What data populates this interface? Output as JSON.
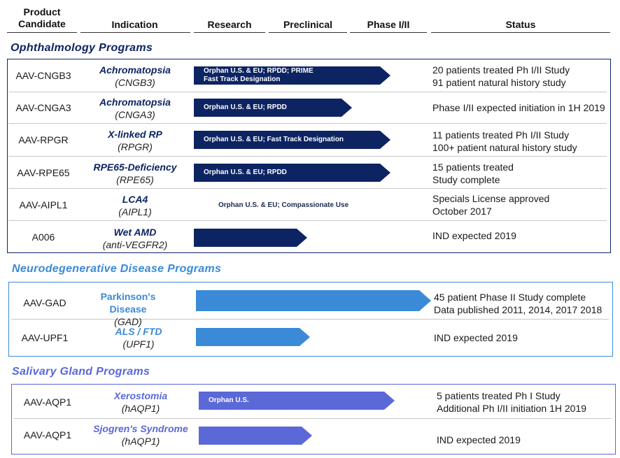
{
  "header": {
    "product_candidate": [
      "Product",
      "Candidate"
    ],
    "indication": "Indication",
    "research": "Research",
    "preclinical": "Preclinical",
    "phase": "Phase I/II",
    "status": "Status"
  },
  "colors": {
    "ophthalmology": "#0d2463",
    "neuro": "#3a8ad8",
    "salivary": "#5a68d8"
  },
  "sections": {
    "ophthalmology": {
      "title": "Ophthalmology Programs",
      "rows": [
        {
          "candidate": "AAV-CNGB3",
          "indication": "Achromatopsia",
          "gene": "(CNGB3)",
          "arrow_label": [
            "Orphan U.S. & EU; RPDD; PRIME",
            "Fast Track Designation"
          ],
          "stage": "Phase I/II",
          "status": [
            "20 patients treated Ph I/II Study",
            "91 patient natural history study"
          ]
        },
        {
          "candidate": "AAV-CNGA3",
          "indication": "Achromatopsia",
          "gene": "(CNGA3)",
          "arrow_label": [
            "Orphan U.S. & EU; RPDD"
          ],
          "stage": "Preclinical",
          "status": [
            "Phase I/II expected initiation in 1H 2019"
          ]
        },
        {
          "candidate": "AAV-RPGR",
          "indication": "X-linked RP",
          "gene": "(RPGR)",
          "arrow_label": [
            "Orphan U.S. & EU; Fast Track Designation"
          ],
          "stage": "Phase I/II",
          "status": [
            "11 patients treated Ph I/II Study",
            "100+ patient natural history study"
          ]
        },
        {
          "candidate": "AAV-RPE65",
          "indication": "RPE65-Deficiency",
          "gene": "(RPE65)",
          "arrow_label": [
            "Orphan U.S. & EU; RPDD"
          ],
          "stage": "Phase I/II",
          "status": [
            "15 patients treated",
            "Study complete"
          ]
        },
        {
          "candidate": "AAV-AIPL1",
          "indication": "LCA4",
          "gene": "(AIPL1)",
          "arrow_label": [
            "Orphan U.S. & EU; Compassionate Use"
          ],
          "stage": "none",
          "status": [
            "Specials License approved",
            "October  2017"
          ]
        },
        {
          "candidate": "A006",
          "indication": "Wet AMD",
          "gene": "(anti-VEGFR2)",
          "arrow_label": [],
          "stage": "Preclinical",
          "status": [
            "IND expected  2019"
          ]
        }
      ]
    },
    "neuro": {
      "title": "Neurodegenerative Disease Programs",
      "rows": [
        {
          "candidate": "AAV-GAD",
          "indication": "Parkinson's Disease",
          "gene": "(GAD)",
          "arrow_label": [],
          "stage": "Phase I/II",
          "status": [
            "45 patient Phase II Study complete",
            "Data published 2011, 2014, 2017 2018"
          ]
        },
        {
          "candidate": "AAV-UPF1",
          "indication": "ALS / FTD",
          "gene": "(UPF1)",
          "arrow_label": [],
          "stage": "Preclinical",
          "status": [
            "IND expected  2019"
          ]
        }
      ]
    },
    "salivary": {
      "title": "Salivary Gland Programs",
      "rows": [
        {
          "candidate": "AAV-AQP1",
          "indication": "Xerostomia",
          "gene": "(hAQP1)",
          "arrow_label": [
            "Orphan U.S."
          ],
          "stage": "Phase I/II",
          "status": [
            "5 patients treated Ph I Study",
            "Additional Ph I/II initiation 1H 2019"
          ]
        },
        {
          "candidate": "AAV-AQP1",
          "indication": "Sjogren's Syndrome",
          "gene": "(hAQP1)",
          "arrow_label": [],
          "stage": "Preclinical",
          "status": [
            "IND expected  2019"
          ]
        }
      ]
    }
  }
}
